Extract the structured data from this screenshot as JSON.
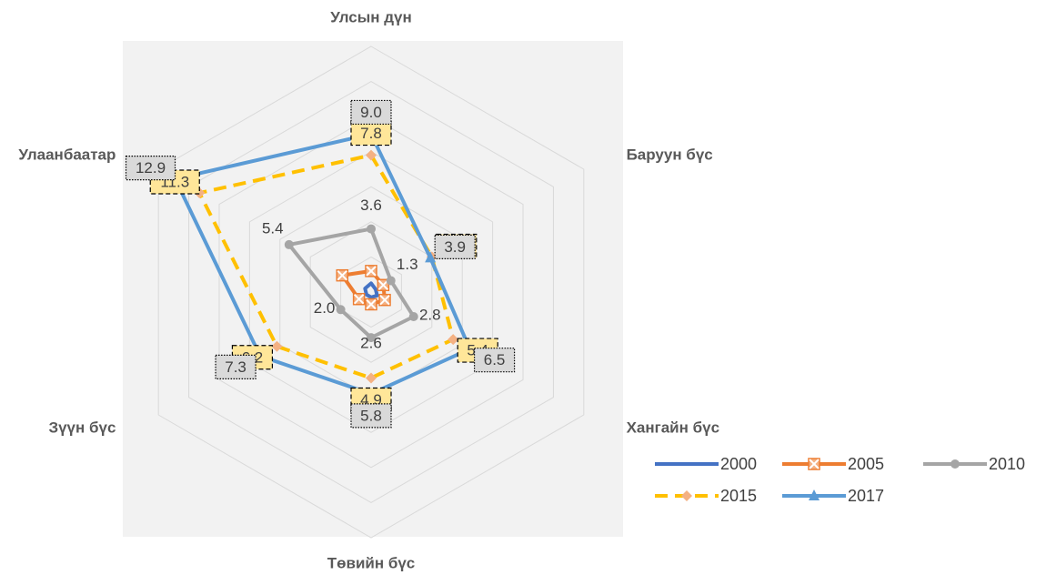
{
  "chart_data": {
    "type": "radar",
    "categories": [
      "Улсын дүн",
      "Баруун бүс",
      "Хангайн бүс",
      "Төвийн бүс",
      "Зүүн бүс",
      "Улаанбаатар"
    ],
    "rlim": [
      0,
      14
    ],
    "rticks": [
      2,
      4,
      6,
      8,
      10,
      12,
      14
    ],
    "grid": true,
    "legend": "bottom-right",
    "series": [
      {
        "name": "2000",
        "color": "#4472c4",
        "marker": "none",
        "dash": false,
        "values": [
          0.5,
          0.3,
          0.4,
          0.3,
          0.3,
          0.4
        ]
      },
      {
        "name": "2005",
        "color": "#ed7d31",
        "marker": "x-square",
        "dash": false,
        "values": [
          1.2,
          0.8,
          0.9,
          0.7,
          0.8,
          1.9
        ]
      },
      {
        "name": "2010",
        "color": "#a5a5a5",
        "marker": "circle",
        "dash": false,
        "values": [
          3.6,
          1.3,
          2.8,
          2.6,
          2.0,
          5.4
        ],
        "value_labels": [
          "3.6",
          "1.3",
          "2.8",
          "2.6",
          "2.0",
          "5.4"
        ],
        "label_style": "plain"
      },
      {
        "name": "2015",
        "color": "#ffc000",
        "marker": "diamond",
        "dash": true,
        "values": [
          7.8,
          4.0,
          5.4,
          4.9,
          6.2,
          11.3
        ],
        "value_labels": [
          "7.8",
          "4.0",
          "5.4",
          "4.9",
          "6.2",
          "11.3"
        ],
        "label_style": "yellow-box"
      },
      {
        "name": "2017",
        "color": "#5b9bd5",
        "marker": "triangle",
        "dash": false,
        "values": [
          9.0,
          3.9,
          6.5,
          5.8,
          7.3,
          12.9
        ],
        "value_labels": [
          "9.0",
          "3.9",
          "6.5",
          "5.8",
          "7.3",
          "12.9"
        ],
        "label_style": "gray-box"
      }
    ]
  }
}
